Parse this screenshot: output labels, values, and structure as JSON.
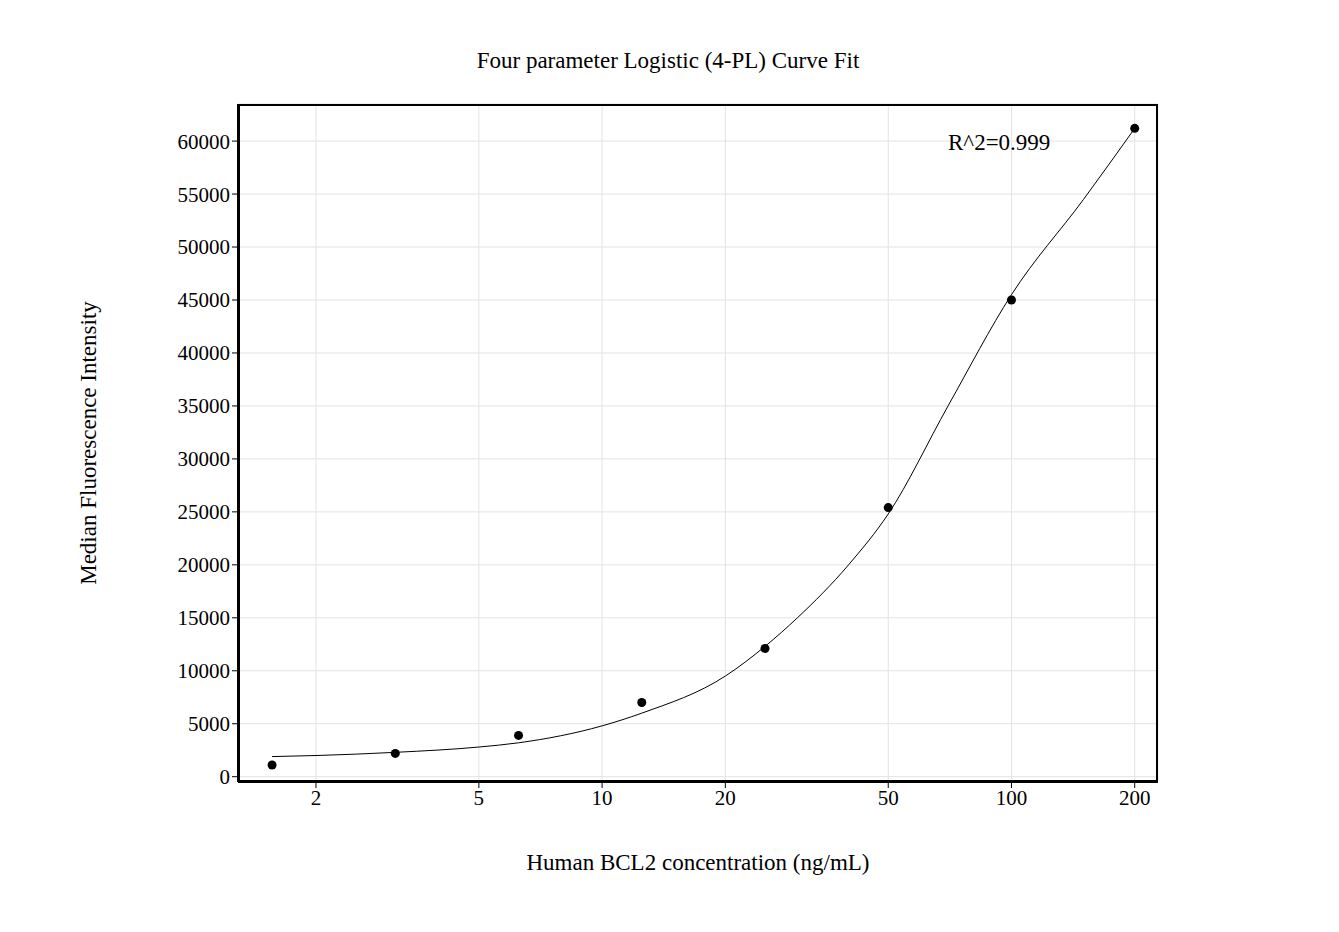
{
  "chart_data": {
    "type": "scatter",
    "title": "Four parameter Logistic (4-PL) Curve Fit",
    "x_label": "Human BCL2 concentration (ng/mL)",
    "y_label": "Median Fluorescence Intensity",
    "annotations": [
      "R^2=0.999"
    ],
    "log": "x",
    "grid": true,
    "xlim": [
      1.29,
      228
    ],
    "ylim": [
      -500,
      63500
    ],
    "xticks": [
      2,
      5,
      10,
      20,
      50,
      100,
      200
    ],
    "yticks": [
      0,
      5000,
      10000,
      15000,
      20000,
      25000,
      30000,
      35000,
      40000,
      45000,
      50000,
      55000,
      60000
    ],
    "series": [
      {
        "type": "scatter",
        "color": "#000000",
        "marker": "circle",
        "x": [
          1.5625,
          3.125,
          6.25,
          12.5,
          25,
          50,
          100,
          200
        ],
        "values": [
          1100,
          2200,
          3900,
          7000,
          12100,
          25400,
          45000,
          61200
        ]
      },
      {
        "type": "line",
        "color": "#000000",
        "line_style": "solid",
        "x": [
          1.5625,
          2,
          3.125,
          5,
          6.25,
          10,
          12.5,
          20,
          25,
          30,
          40,
          50,
          70,
          100,
          150,
          200
        ],
        "values": [
          1900,
          2000,
          2300,
          2800,
          3200,
          4800,
          6000,
          9500,
          12300,
          15000,
          20000,
          24800,
          35000,
          45500,
          54500,
          61200
        ]
      }
    ]
  }
}
